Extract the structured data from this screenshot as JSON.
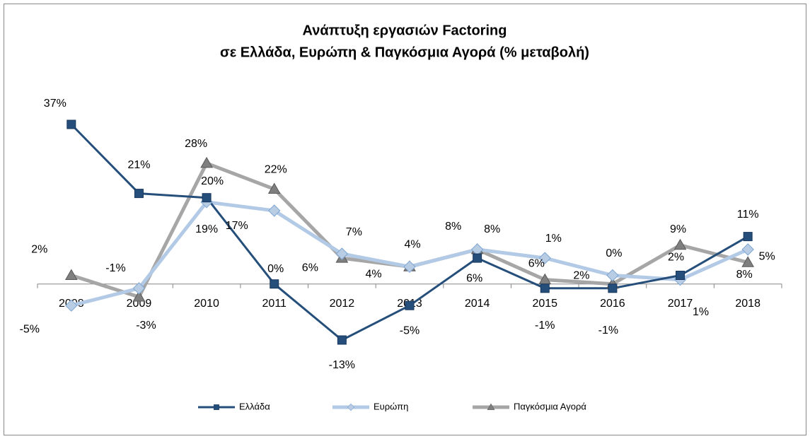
{
  "chart_data": {
    "type": "line",
    "title": "Ανάπτυξη εργασιών Factoring",
    "subtitle": "σε Ελλάδα, Ευρώπη & Παγκόσμια Αγορά (% μεταβολή)",
    "categories": [
      "2008",
      "2009",
      "2010",
      "2011",
      "2012",
      "2013",
      "2014",
      "2015",
      "2016",
      "2017",
      "2018"
    ],
    "series": [
      {
        "name": "Ελλάδα",
        "color": "#254f7a",
        "marker": "square",
        "values": [
          37,
          21,
          20,
          0,
          -13,
          -5,
          6,
          -1,
          -1,
          2,
          11
        ],
        "value_labels": [
          "37%",
          "21%",
          "20%",
          "0%",
          "-13%",
          "-5%",
          "6%",
          "-1%",
          "-1%",
          "2%",
          "11%"
        ]
      },
      {
        "name": "Ευρώπη",
        "color": "#b3cae6",
        "marker": "diamond",
        "values": [
          -5,
          -1,
          19,
          17,
          7,
          4,
          8,
          6,
          2,
          1,
          8
        ],
        "value_labels": [
          "-5%",
          "-1%",
          "19%",
          "17%",
          "7%",
          "4%",
          "8%",
          "6%",
          "2%",
          "1%",
          "8%"
        ]
      },
      {
        "name": "Παγκόσμια Αγορά",
        "color": "#a6a6a6",
        "marker": "triangle",
        "values": [
          2,
          -3,
          28,
          22,
          6,
          4,
          8,
          1,
          0,
          9,
          5
        ],
        "value_labels": [
          "2%",
          "-3%",
          "28%",
          "22%",
          "6%",
          "4%",
          "8%",
          "1%",
          "0%",
          "9%",
          "5%"
        ]
      }
    ]
  }
}
